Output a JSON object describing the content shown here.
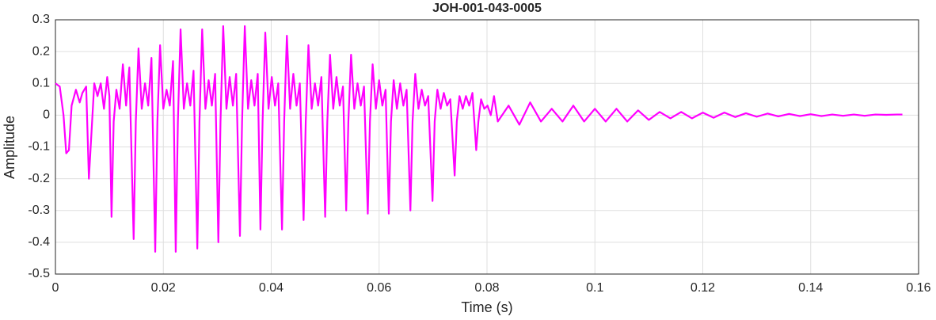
{
  "chart_data": {
    "type": "line",
    "title": "JOH-001-043-0005",
    "xlabel": "Time (s)",
    "ylabel": "Amplitude",
    "color": "#ff00ff",
    "grid": true,
    "xlim": [
      0,
      0.16
    ],
    "xticks": [
      0,
      0.02,
      0.04,
      0.06,
      0.08,
      0.1,
      0.12,
      0.14,
      0.16
    ],
    "ylim": [
      -0.5,
      0.3
    ],
    "yticks": [
      -0.5,
      -0.4,
      -0.3,
      -0.2,
      -0.1,
      0,
      0.1,
      0.2,
      0.3
    ],
    "x": [
      0,
      0.0008,
      0.0015,
      0.002,
      0.0025,
      0.003,
      0.0038,
      0.0045,
      0.005,
      0.0057,
      0.0062,
      0.0067,
      0.0072,
      0.0078,
      0.0084,
      0.009,
      0.0096,
      0.01,
      0.0104,
      0.0108,
      0.0113,
      0.0119,
      0.0125,
      0.0131,
      0.0137,
      0.0145,
      0.0149,
      0.0154,
      0.016,
      0.0166,
      0.0172,
      0.0178,
      0.0185,
      0.0189,
      0.0194,
      0.02,
      0.0206,
      0.0212,
      0.0218,
      0.0223,
      0.0227,
      0.0232,
      0.0238,
      0.0244,
      0.025,
      0.0256,
      0.0263,
      0.0267,
      0.0272,
      0.0278,
      0.0284,
      0.029,
      0.0296,
      0.0302,
      0.0306,
      0.0311,
      0.0317,
      0.0323,
      0.0329,
      0.0335,
      0.0342,
      0.0346,
      0.0351,
      0.0357,
      0.0363,
      0.0369,
      0.0375,
      0.038,
      0.0384,
      0.0389,
      0.0395,
      0.0401,
      0.0407,
      0.0413,
      0.042,
      0.0424,
      0.0429,
      0.0435,
      0.0441,
      0.0447,
      0.0453,
      0.046,
      0.0464,
      0.0469,
      0.0475,
      0.0481,
      0.0487,
      0.0493,
      0.05,
      0.0504,
      0.0509,
      0.0515,
      0.0521,
      0.0527,
      0.0533,
      0.0539,
      0.0543,
      0.0548,
      0.0554,
      0.056,
      0.0566,
      0.0572,
      0.0579,
      0.0583,
      0.0588,
      0.0594,
      0.06,
      0.0606,
      0.0612,
      0.0618,
      0.0622,
      0.0627,
      0.0633,
      0.0639,
      0.0645,
      0.0651,
      0.0658,
      0.0662,
      0.0667,
      0.0673,
      0.0679,
      0.0685,
      0.0691,
      0.0699,
      0.0703,
      0.0708,
      0.0714,
      0.072,
      0.0726,
      0.0732,
      0.074,
      0.0744,
      0.0749,
      0.0755,
      0.0761,
      0.0767,
      0.0773,
      0.078,
      0.0784,
      0.0789,
      0.0795,
      0.0801,
      0.0807,
      0.0813,
      0.082,
      0.084,
      0.086,
      0.088,
      0.09,
      0.092,
      0.094,
      0.096,
      0.098,
      0.1,
      0.102,
      0.104,
      0.106,
      0.108,
      0.11,
      0.112,
      0.114,
      0.116,
      0.118,
      0.12,
      0.122,
      0.124,
      0.126,
      0.128,
      0.13,
      0.132,
      0.134,
      0.136,
      0.138,
      0.14,
      0.142,
      0.144,
      0.146,
      0.148,
      0.15,
      0.152,
      0.154,
      0.156,
      0.157
    ],
    "values": [
      0.1,
      0.09,
      0,
      -0.12,
      -0.11,
      0.03,
      0.08,
      0.04,
      0.07,
      0.09,
      -0.2,
      -0.05,
      0.1,
      0.06,
      0.1,
      0.02,
      0.12,
      0.06,
      -0.32,
      -0.02,
      0.08,
      0.02,
      0.16,
      0.03,
      0.15,
      -0.39,
      -0.02,
      0.21,
      0.02,
      0.1,
      0.03,
      0.18,
      -0.43,
      -0.02,
      0.22,
      0.02,
      0.08,
      0.03,
      0.17,
      -0.43,
      -0.02,
      0.27,
      0.02,
      0.1,
      0.03,
      0.14,
      -0.42,
      -0.02,
      0.27,
      0.02,
      0.11,
      0.03,
      0.13,
      -0.4,
      -0.02,
      0.28,
      0.02,
      0.12,
      0.03,
      0.13,
      -0.38,
      -0.02,
      0.28,
      0.02,
      0.11,
      0.03,
      0.13,
      -0.36,
      -0.02,
      0.26,
      0.02,
      0.12,
      0.03,
      0.1,
      -0.36,
      -0.02,
      0.25,
      0.02,
      0.13,
      0.03,
      0.1,
      -0.33,
      -0.02,
      0.22,
      0.02,
      0.1,
      0.03,
      0.12,
      -0.32,
      -0.02,
      0.19,
      0.02,
      0.12,
      0.03,
      0.09,
      -0.3,
      -0.02,
      0.19,
      0.02,
      0.1,
      0.03,
      0.09,
      -0.31,
      -0.02,
      0.16,
      0.02,
      0.11,
      0.03,
      0.08,
      -0.31,
      -0.02,
      0.11,
      0.02,
      0.1,
      0.03,
      0.08,
      -0.3,
      -0.02,
      0.13,
      0.02,
      0.08,
      0.03,
      0.06,
      -0.27,
      -0.02,
      0.08,
      0.02,
      0.07,
      0.03,
      0.05,
      -0.19,
      -0.02,
      0.06,
      0.02,
      0.06,
      0.03,
      0.07,
      -0.11,
      -0.02,
      0.05,
      0.02,
      0.03,
      0,
      0.06,
      -0.02,
      0.03,
      -0.03,
      0.04,
      -0.02,
      0.02,
      -0.02,
      0.03,
      -0.02,
      0.02,
      -0.02,
      0.02,
      -0.02,
      0.015,
      -0.015,
      0.01,
      -0.01,
      0.01,
      -0.01,
      0.008,
      -0.008,
      0.008,
      -0.006,
      0.006,
      -0.005,
      0.005,
      -0.004,
      0.004,
      -0.003,
      0.003,
      -0.003,
      0.002,
      -0.002,
      0.002,
      -0.002,
      0.002,
      0.001,
      0.002,
      0.002
    ]
  }
}
